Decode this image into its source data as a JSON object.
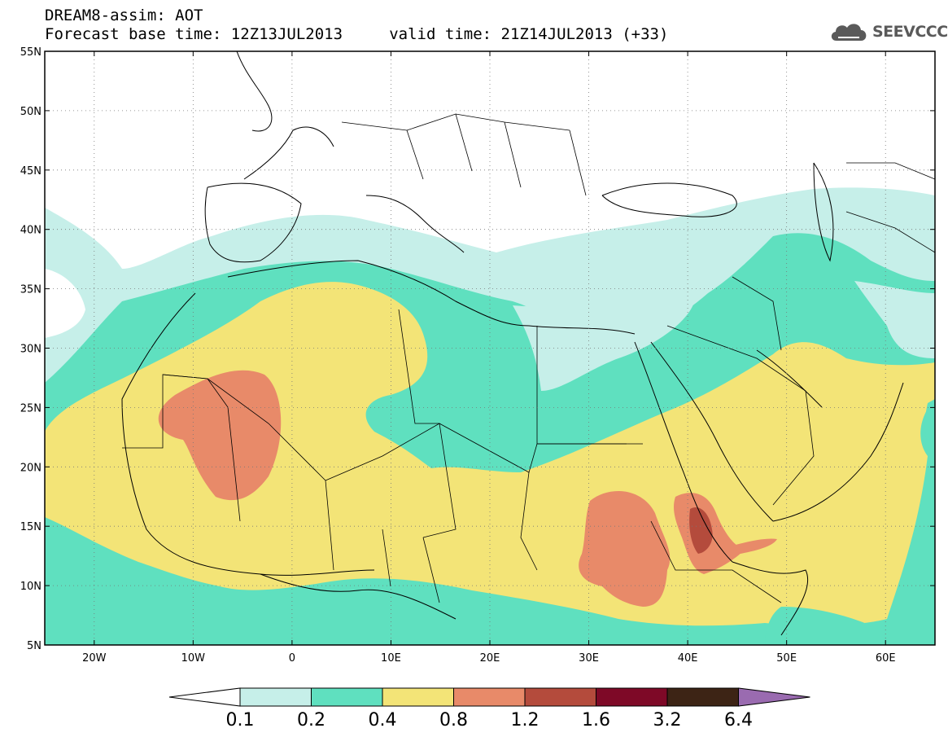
{
  "header": {
    "title": "DREAM8-assim: AOT",
    "subtitle": "Forecast base time: 12Z13JUL2013     valid time: 21Z14JUL2013 (+33)",
    "logo_text": "SEEVCCC"
  },
  "map": {
    "lon_range": [
      -25,
      65
    ],
    "lat_range": [
      5,
      55
    ],
    "lat_ticks": [
      "5N",
      "10N",
      "15N",
      "20N",
      "25N",
      "30N",
      "35N",
      "40N",
      "45N",
      "50N",
      "55N"
    ],
    "lon_ticks": [
      "20W",
      "10W",
      "0",
      "10E",
      "20E",
      "30E",
      "40E",
      "50E",
      "60E"
    ],
    "grid": "dotted",
    "colors": {
      "lt_0.1": "#ffffff",
      "0.1-0.2": "#c6efe9",
      "0.2-0.4": "#5fe0bf",
      "0.4-0.8": "#f3e477",
      "0.8-1.2": "#e88a69",
      "1.2-1.6": "#b44b3c"
    }
  },
  "colorbar": {
    "labels": [
      "0.1",
      "0.2",
      "0.4",
      "0.8",
      "1.2",
      "1.6",
      "3.2",
      "6.4"
    ],
    "colors": [
      "#ffffff",
      "#c6efe9",
      "#5fe0bf",
      "#f3e477",
      "#e88a69",
      "#b44b3c",
      "#7e0927",
      "#3d2415",
      "#9a6bb0"
    ]
  }
}
